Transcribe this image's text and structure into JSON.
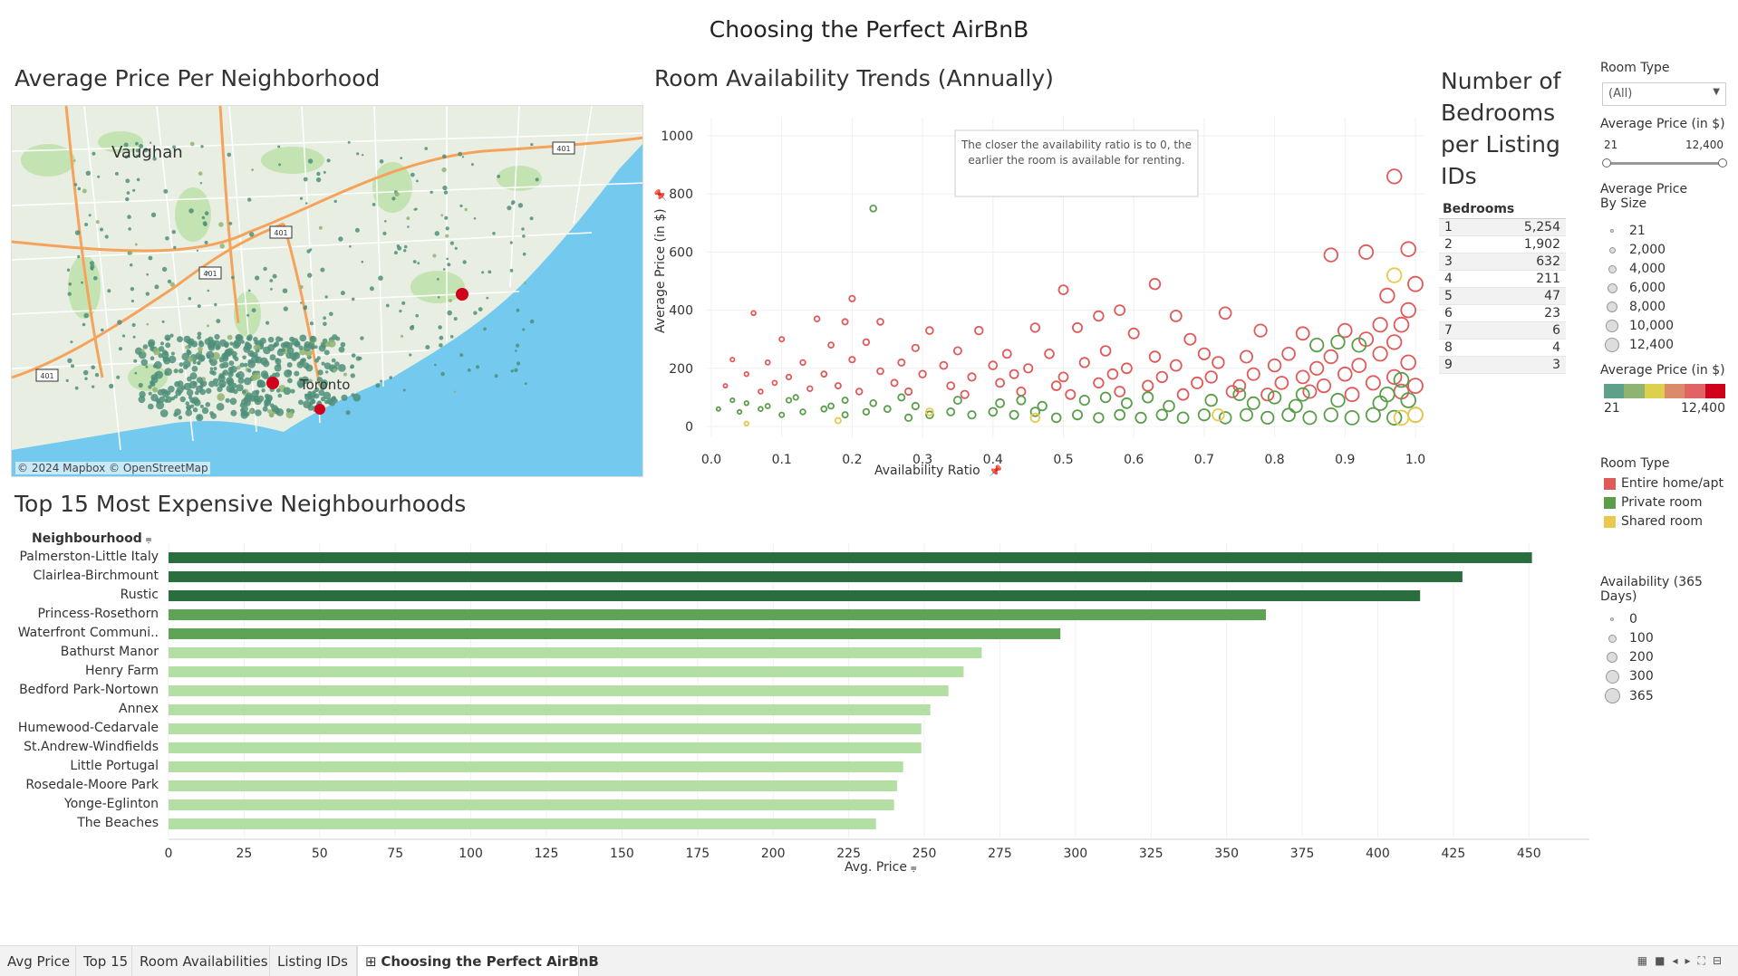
{
  "dashboard_title": "Choosing the Perfect AirBnB",
  "map": {
    "title": "Average Price Per Neighborhood",
    "labels": [
      "Vaughan",
      "Toronto"
    ],
    "highway_shields": [
      "401",
      "401",
      "401",
      "401"
    ],
    "credit": "© 2024 Mapbox © OpenStreetMap"
  },
  "scatter": {
    "title": "Room Availability Trends (Annually)",
    "annotation": "The closer the availability ratio is to 0, the earlier the room is available for renting.",
    "pin_icon": "pin-icon"
  },
  "bedrooms": {
    "title_lines": [
      "Number of",
      "Bedrooms",
      "per Listing",
      "IDs"
    ],
    "header": "Bedrooms",
    "rows": [
      {
        "bedrooms": "1",
        "count": "5,254"
      },
      {
        "bedrooms": "2",
        "count": "1,902"
      },
      {
        "bedrooms": "3",
        "count": "632"
      },
      {
        "bedrooms": "4",
        "count": "211"
      },
      {
        "bedrooms": "5",
        "count": "47"
      },
      {
        "bedrooms": "6",
        "count": "23"
      },
      {
        "bedrooms": "7",
        "count": "6"
      },
      {
        "bedrooms": "8",
        "count": "4"
      },
      {
        "bedrooms": "9",
        "count": "3"
      }
    ]
  },
  "filters": {
    "room_type_label": "Room Type",
    "room_type_value": "(All)",
    "price_label": "Average Price (in $)",
    "price_min": "21",
    "price_max": "12,400",
    "size_legend_title_1": "Average Price",
    "size_legend_title_2": "By Size",
    "size_legend": [
      "21",
      "2,000",
      "4,000",
      "6,000",
      "8,000",
      "10,000",
      "12,400"
    ],
    "color_legend_title": "Average Price (in $)",
    "color_min": "21",
    "color_max": "12,400",
    "color_ramp": [
      "#5fa08a",
      "#8fb472",
      "#dcd14e",
      "#d98b6a",
      "#e06464",
      "#d0021b"
    ],
    "room_type_legend_title": "Room Type",
    "room_types": [
      {
        "name": "Entire home/apt",
        "color": "#e05a5a"
      },
      {
        "name": "Private room",
        "color": "#5a9e4b"
      },
      {
        "name": "Shared room",
        "color": "#e8c94d"
      }
    ],
    "availability_title_1": "Availability (365",
    "availability_title_2": "Days)",
    "availability_legend": [
      "0",
      "100",
      "200",
      "300",
      "365"
    ]
  },
  "bar_chart": {
    "title": "Top 15 Most Expensive Neighbourhoods",
    "column_header": "Neighbourhood",
    "sort_icon": "sort-icon"
  },
  "tabs": [
    {
      "label": "Avg Price",
      "active": false
    },
    {
      "label": "Top 15",
      "active": false
    },
    {
      "label": "Room Availabilities",
      "active": false
    },
    {
      "label": "Listing IDs",
      "active": false
    },
    {
      "label": "Choosing the Perfect AirBnB",
      "active": true
    }
  ],
  "chart_data": [
    {
      "type": "scatter",
      "title": "Room Availability Trends (Annually)",
      "xlabel": "Availability Ratio",
      "ylabel": "Average Price (in $)",
      "xlim": [
        0.0,
        1.0
      ],
      "ylim": [
        0,
        1000
      ],
      "x_ticks": [
        "0.0",
        "0.1",
        "0.2",
        "0.3",
        "0.4",
        "0.5",
        "0.6",
        "0.7",
        "0.8",
        "0.9",
        "1.0"
      ],
      "y_ticks": [
        "0",
        "200",
        "400",
        "600",
        "800",
        "1000"
      ],
      "series": [
        {
          "name": "Entire home/apt",
          "color": "#e05a5a",
          "points": [
            [
              0.97,
              860
            ],
            [
              0.88,
              590
            ],
            [
              0.93,
              600
            ],
            [
              0.99,
              610
            ],
            [
              1.0,
              490
            ],
            [
              0.96,
              450
            ],
            [
              0.95,
              350
            ],
            [
              0.99,
              400
            ],
            [
              0.98,
              350
            ],
            [
              0.63,
              490
            ],
            [
              0.5,
              470
            ],
            [
              0.55,
              380
            ],
            [
              0.66,
              380
            ],
            [
              0.73,
              390
            ],
            [
              0.58,
              400
            ],
            [
              0.2,
              440
            ],
            [
              0.06,
              390
            ],
            [
              0.15,
              370
            ],
            [
              0.19,
              360
            ],
            [
              0.24,
              360
            ],
            [
              0.31,
              330
            ],
            [
              0.38,
              330
            ],
            [
              0.46,
              340
            ],
            [
              0.52,
              340
            ],
            [
              0.6,
              320
            ],
            [
              0.68,
              300
            ],
            [
              0.78,
              330
            ],
            [
              0.84,
              320
            ],
            [
              0.9,
              330
            ],
            [
              0.93,
              300
            ],
            [
              0.97,
              290
            ],
            [
              0.1,
              300
            ],
            [
              0.17,
              280
            ],
            [
              0.22,
              290
            ],
            [
              0.29,
              270
            ],
            [
              0.35,
              260
            ],
            [
              0.42,
              250
            ],
            [
              0.48,
              250
            ],
            [
              0.56,
              260
            ],
            [
              0.63,
              240
            ],
            [
              0.7,
              250
            ],
            [
              0.76,
              240
            ],
            [
              0.82,
              250
            ],
            [
              0.88,
              240
            ],
            [
              0.95,
              250
            ],
            [
              0.03,
              230
            ],
            [
              0.08,
              220
            ],
            [
              0.13,
              220
            ],
            [
              0.2,
              230
            ],
            [
              0.27,
              220
            ],
            [
              0.33,
              210
            ],
            [
              0.4,
              210
            ],
            [
              0.45,
              200
            ],
            [
              0.53,
              220
            ],
            [
              0.59,
              200
            ],
            [
              0.66,
              210
            ],
            [
              0.72,
              220
            ],
            [
              0.8,
              210
            ],
            [
              0.86,
              200
            ],
            [
              0.92,
              210
            ],
            [
              0.99,
              220
            ],
            [
              0.05,
              180
            ],
            [
              0.11,
              170
            ],
            [
              0.16,
              180
            ],
            [
              0.24,
              190
            ],
            [
              0.3,
              180
            ],
            [
              0.37,
              170
            ],
            [
              0.43,
              180
            ],
            [
              0.5,
              170
            ],
            [
              0.57,
              180
            ],
            [
              0.64,
              170
            ],
            [
              0.71,
              170
            ],
            [
              0.77,
              180
            ],
            [
              0.84,
              170
            ],
            [
              0.9,
              180
            ],
            [
              0.97,
              170
            ],
            [
              0.02,
              140
            ],
            [
              0.09,
              150
            ],
            [
              0.18,
              140
            ],
            [
              0.26,
              150
            ],
            [
              0.34,
              140
            ],
            [
              0.41,
              150
            ],
            [
              0.49,
              140
            ],
            [
              0.55,
              150
            ],
            [
              0.62,
              140
            ],
            [
              0.69,
              150
            ],
            [
              0.75,
              140
            ],
            [
              0.81,
              150
            ],
            [
              0.87,
              140
            ],
            [
              0.94,
              150
            ],
            [
              1.0,
              140
            ],
            [
              0.07,
              120
            ],
            [
              0.14,
              130
            ],
            [
              0.21,
              120
            ],
            [
              0.28,
              120
            ],
            [
              0.36,
              110
            ],
            [
              0.44,
              120
            ],
            [
              0.51,
              110
            ],
            [
              0.58,
              120
            ],
            [
              0.67,
              110
            ],
            [
              0.74,
              120
            ],
            [
              0.79,
              110
            ],
            [
              0.85,
              120
            ],
            [
              0.91,
              110
            ],
            [
              0.98,
              120
            ]
          ]
        },
        {
          "name": "Private room",
          "color": "#5a9e4b",
          "points": [
            [
              0.23,
              750
            ],
            [
              0.01,
              60
            ],
            [
              0.04,
              50
            ],
            [
              0.07,
              60
            ],
            [
              0.1,
              40
            ],
            [
              0.13,
              50
            ],
            [
              0.16,
              60
            ],
            [
              0.19,
              40
            ],
            [
              0.22,
              50
            ],
            [
              0.25,
              60
            ],
            [
              0.28,
              30
            ],
            [
              0.31,
              40
            ],
            [
              0.34,
              50
            ],
            [
              0.37,
              40
            ],
            [
              0.4,
              50
            ],
            [
              0.43,
              40
            ],
            [
              0.46,
              50
            ],
            [
              0.49,
              30
            ],
            [
              0.52,
              40
            ],
            [
              0.55,
              30
            ],
            [
              0.58,
              40
            ],
            [
              0.61,
              30
            ],
            [
              0.64,
              40
            ],
            [
              0.67,
              30
            ],
            [
              0.7,
              40
            ],
            [
              0.73,
              30
            ],
            [
              0.76,
              40
            ],
            [
              0.79,
              30
            ],
            [
              0.82,
              40
            ],
            [
              0.85,
              30
            ],
            [
              0.88,
              40
            ],
            [
              0.91,
              30
            ],
            [
              0.94,
              40
            ],
            [
              0.97,
              30
            ],
            [
              1.0,
              40
            ],
            [
              0.05,
              80
            ],
            [
              0.11,
              90
            ],
            [
              0.17,
              70
            ],
            [
              0.23,
              80
            ],
            [
              0.29,
              70
            ],
            [
              0.35,
              90
            ],
            [
              0.41,
              80
            ],
            [
              0.47,
              70
            ],
            [
              0.53,
              90
            ],
            [
              0.59,
              80
            ],
            [
              0.65,
              70
            ],
            [
              0.71,
              90
            ],
            [
              0.77,
              80
            ],
            [
              0.83,
              70
            ],
            [
              0.89,
              90
            ],
            [
              0.95,
              80
            ],
            [
              0.99,
              90
            ],
            [
              0.62,
              100
            ],
            [
              0.75,
              110
            ],
            [
              0.86,
              280
            ],
            [
              0.89,
              290
            ],
            [
              0.92,
              280
            ],
            [
              0.98,
              160
            ],
            [
              0.96,
              110
            ],
            [
              0.8,
              100
            ],
            [
              0.84,
              110
            ],
            [
              0.56,
              100
            ],
            [
              0.44,
              90
            ],
            [
              0.12,
              100
            ],
            [
              0.03,
              90
            ],
            [
              0.08,
              70
            ],
            [
              0.19,
              90
            ],
            [
              0.27,
              100
            ]
          ]
        },
        {
          "name": "Shared room",
          "color": "#e8c94d",
          "points": [
            [
              0.97,
              520
            ],
            [
              0.98,
              30
            ],
            [
              1.0,
              40
            ],
            [
              0.05,
              10
            ],
            [
              0.18,
              20
            ],
            [
              0.31,
              50
            ],
            [
              0.46,
              30
            ],
            [
              0.72,
              40
            ]
          ]
        }
      ]
    },
    {
      "type": "bar",
      "title": "Top 15 Most Expensive Neighbourhoods",
      "xlabel": "Avg. Price",
      "ylabel": "Neighbourhood",
      "xlim": [
        0,
        470
      ],
      "x_ticks": [
        "0",
        "25",
        "50",
        "75",
        "100",
        "125",
        "150",
        "175",
        "200",
        "225",
        "250",
        "275",
        "300",
        "325",
        "350",
        "375",
        "400",
        "425",
        "450"
      ],
      "categories": [
        "Palmerston-Little Italy",
        "Clairlea-Birchmount",
        "Rustic",
        "Princess-Rosethorn",
        "Waterfront Communi..",
        "Bathurst Manor",
        "Henry Farm",
        "Bedford Park-Nortown",
        "Annex",
        "Humewood-Cedarvale",
        "St.Andrew-Windfields",
        "Little Portugal",
        "Rosedale-Moore Park",
        "Yonge-Eglinton",
        "The Beaches"
      ],
      "values": [
        451,
        428,
        414,
        363,
        295,
        269,
        263,
        258,
        252,
        249,
        249,
        243,
        241,
        240,
        234
      ],
      "colors": [
        "#2a6e3f",
        "#2a6e3f",
        "#2a6e3f",
        "#5fa456",
        "#5fa456",
        "#b3dea4",
        "#b3dea4",
        "#b3dea4",
        "#b3dea4",
        "#b3dea4",
        "#b3dea4",
        "#b3dea4",
        "#b3dea4",
        "#b3dea4",
        "#b3dea4"
      ]
    }
  ]
}
